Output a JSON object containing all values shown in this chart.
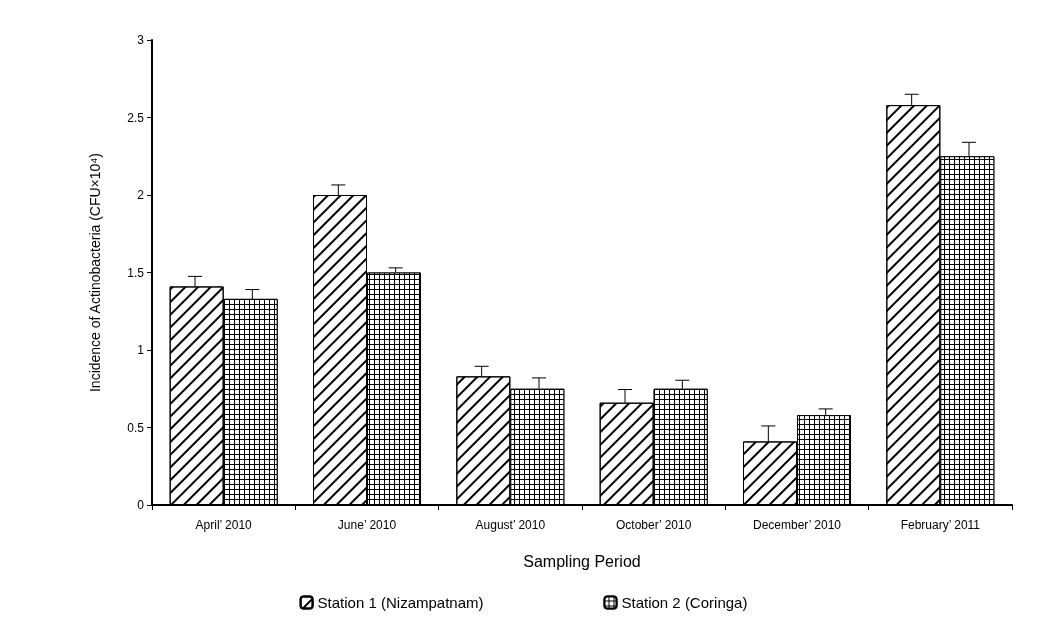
{
  "chart_data": {
    "type": "bar",
    "xlabel": "Sampling Period",
    "ylabel": "Incidence of Actinobacteria (CFU×10⁴)",
    "categories": [
      "April’ 2010",
      "June’ 2010",
      "August’ 2010",
      "October’ 2010",
      "December’ 2010",
      "February’ 2011"
    ],
    "series": [
      {
        "name": "Station 1 (Nizampatnam)",
        "color": "#000000",
        "values": [
          1.41,
          2.0,
          0.83,
          0.66,
          0.41,
          2.58
        ],
        "errors": [
          0.065,
          0.065,
          0.065,
          0.085,
          0.1,
          0.07
        ]
      },
      {
        "name": "Station 2 (Coringa)",
        "color": "#000000",
        "values": [
          1.33,
          1.5,
          0.75,
          0.75,
          0.58,
          2.25
        ],
        "errors": [
          0.06,
          0.03,
          0.07,
          0.055,
          0.04,
          0.09
        ]
      }
    ],
    "ylim": [
      0,
      3
    ],
    "yticks": [
      0,
      0.5,
      1,
      1.5,
      2,
      2.5,
      3
    ],
    "grid": false,
    "legend": "bottom"
  }
}
